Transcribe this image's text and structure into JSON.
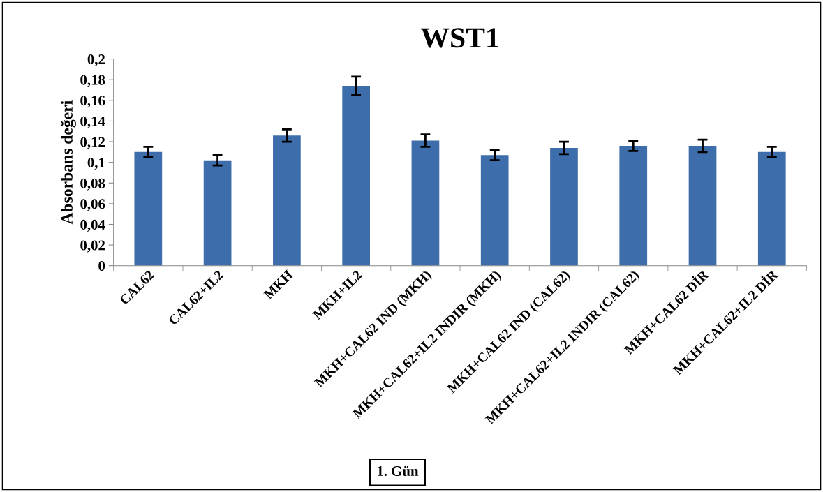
{
  "chart_data": {
    "type": "bar",
    "title": "WST1",
    "ylabel": "Absorbans değeri",
    "categories": [
      "CAL62",
      "CAL62+IL2",
      "MKH",
      "MKH+IL2",
      "MKH+CAL62 IND (MKH)",
      "MKH+CAL62+IL2 INDIR (MKH)",
      "MKH+CAL62 IND (CAL62)",
      "MKH+CAL62+IL2 INDIR (CAL62)",
      "MKH+CAL62 DİR",
      "MKH+CAL62+IL2 DİR"
    ],
    "values": [
      0.11,
      0.102,
      0.126,
      0.174,
      0.121,
      0.107,
      0.114,
      0.116,
      0.116,
      0.11
    ],
    "errors": [
      0.005,
      0.005,
      0.006,
      0.009,
      0.006,
      0.005,
      0.006,
      0.005,
      0.006,
      0.005
    ],
    "color": "#3d6dab",
    "ylim": [
      0,
      0.2
    ],
    "yticks": [
      {
        "value": 0,
        "label": "0"
      },
      {
        "value": 0.02,
        "label": "0,02"
      },
      {
        "value": 0.04,
        "label": "0,04"
      },
      {
        "value": 0.06,
        "label": "0,06"
      },
      {
        "value": 0.08,
        "label": "0,08"
      },
      {
        "value": 0.1,
        "label": "0,1"
      },
      {
        "value": 0.12,
        "label": "0,12"
      },
      {
        "value": 0.14,
        "label": "0,14"
      },
      {
        "value": 0.16,
        "label": "0,16"
      },
      {
        "value": 0.18,
        "label": "0,18"
      },
      {
        "value": 0.2,
        "label": "0,2"
      }
    ],
    "grid": false,
    "legend": false,
    "annotations": [
      "1. Gün"
    ]
  }
}
